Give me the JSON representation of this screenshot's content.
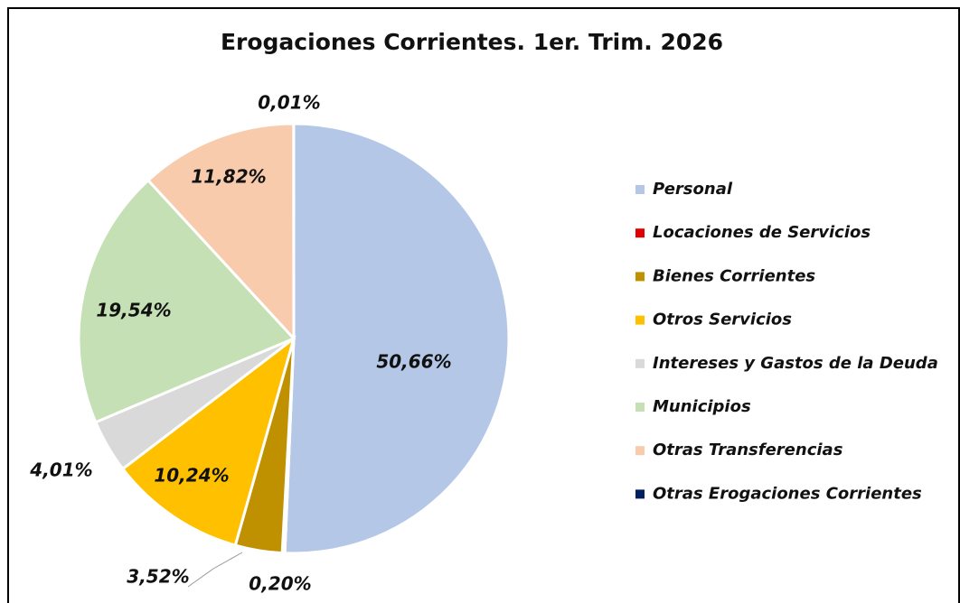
{
  "chart_data": {
    "type": "pie",
    "title": "Erogaciones Corrientes.  1er. Trim. 2026",
    "categories": [
      "Personal",
      "Locaciones de Servicios",
      "Bienes Corrientes",
      "Otros Servicios",
      "Intereses y Gastos de la Deuda",
      "Municipios",
      "Otras Transferencias",
      "Otras Erogaciones Corrientes"
    ],
    "values": [
      50.66,
      0.2,
      3.52,
      10.24,
      4.01,
      19.54,
      11.82,
      0.01
    ],
    "value_labels": [
      "50,66%",
      "0,20%",
      "3,52%",
      "10,24%",
      "4,01%",
      "19,54%",
      "11,82%",
      "0,01%"
    ],
    "colors": [
      "#b4c7e7",
      "#e00000",
      "#bf9000",
      "#ffc000",
      "#d9d9d9",
      "#c5e0b4",
      "#f8cbad",
      "#002060"
    ],
    "legend": "right"
  }
}
